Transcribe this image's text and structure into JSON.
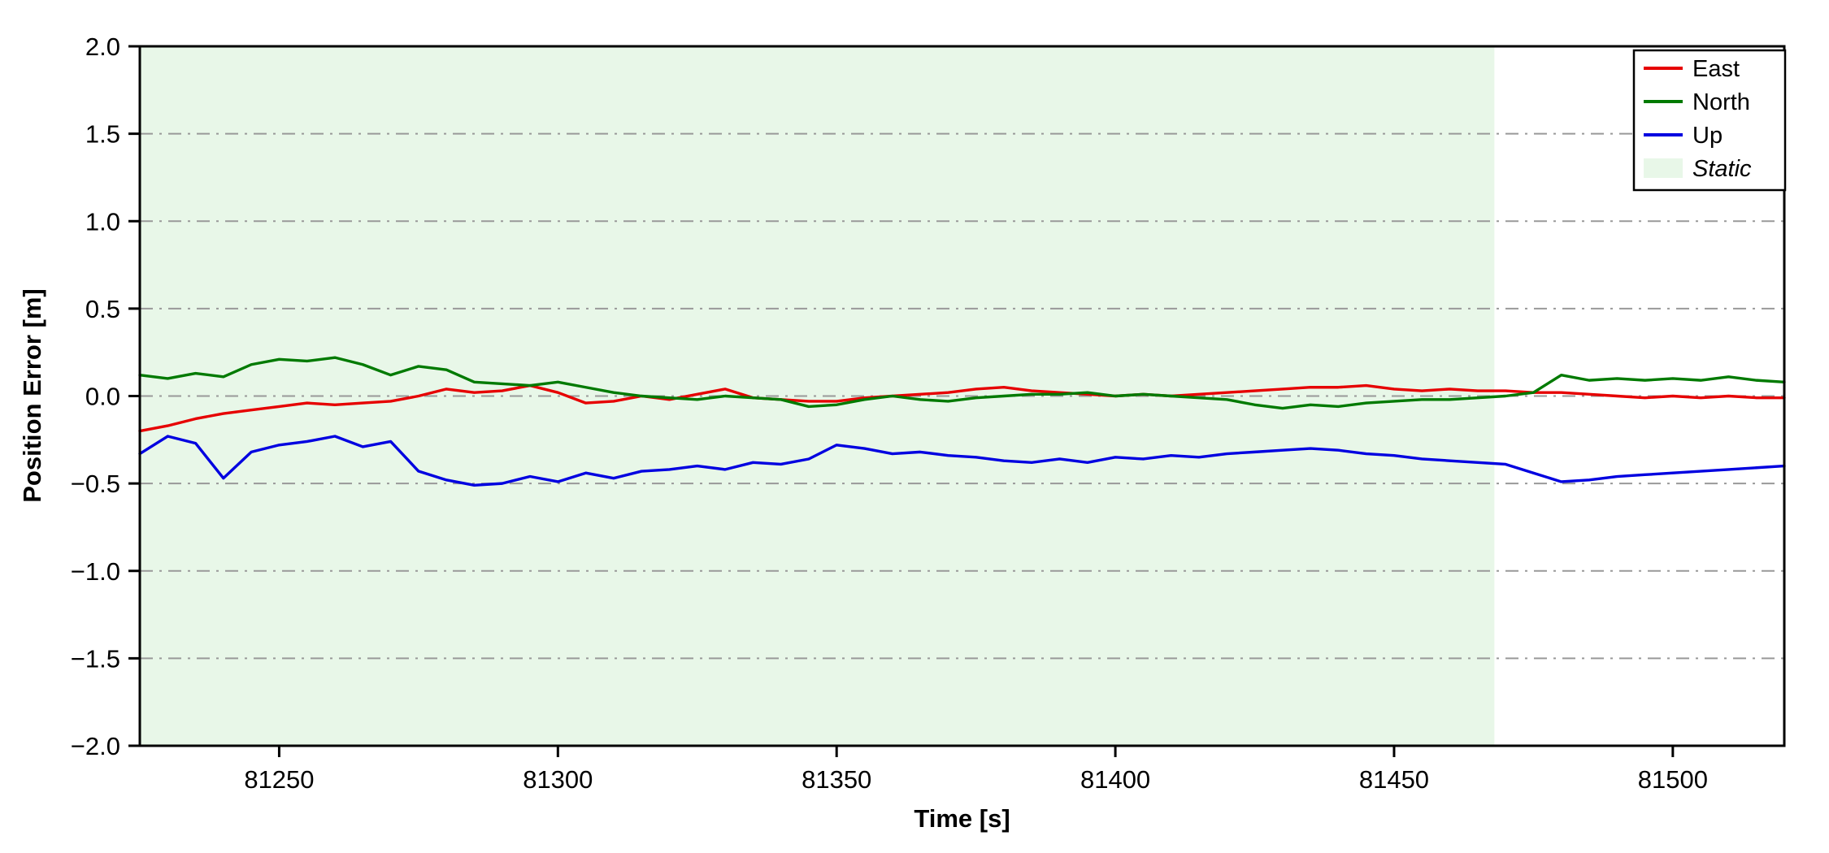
{
  "chart_data": {
    "type": "line",
    "title": "",
    "xlabel": "Time [s]",
    "ylabel": "Position Error [m]",
    "xlim": [
      81225,
      81520
    ],
    "ylim": [
      -2.0,
      2.0
    ],
    "xticks": [
      81250,
      81300,
      81350,
      81400,
      81450,
      81500
    ],
    "yticks": [
      -2.0,
      -1.5,
      -1.0,
      -0.5,
      0.0,
      0.5,
      1.0,
      1.5,
      2.0
    ],
    "grid": {
      "axis": "y",
      "style": "dash-dot",
      "color": "#999999"
    },
    "static_region": {
      "label": "Static",
      "x_start": 81225,
      "x_end": 81468,
      "color": "#e8f7e8"
    },
    "legend": {
      "position": "top-right",
      "entries": [
        {
          "label": "East",
          "type": "line",
          "color": "#e60000"
        },
        {
          "label": "North",
          "type": "line",
          "color": "#007a00"
        },
        {
          "label": "Up",
          "type": "line",
          "color": "#0000e0"
        },
        {
          "label": "Static",
          "type": "patch",
          "color": "#e8f7e8",
          "italic": true
        }
      ]
    },
    "x": [
      81225,
      81230,
      81235,
      81240,
      81245,
      81250,
      81255,
      81260,
      81265,
      81270,
      81275,
      81280,
      81285,
      81290,
      81295,
      81300,
      81305,
      81310,
      81315,
      81320,
      81325,
      81330,
      81335,
      81340,
      81345,
      81350,
      81355,
      81360,
      81365,
      81370,
      81375,
      81380,
      81385,
      81390,
      81395,
      81400,
      81405,
      81410,
      81415,
      81420,
      81425,
      81430,
      81435,
      81440,
      81445,
      81450,
      81455,
      81460,
      81465,
      81470,
      81475,
      81480,
      81485,
      81490,
      81495,
      81500,
      81505,
      81510,
      81515,
      81520
    ],
    "series": [
      {
        "name": "East",
        "color": "#e60000",
        "values": [
          -0.2,
          -0.17,
          -0.13,
          -0.1,
          -0.08,
          -0.06,
          -0.04,
          -0.05,
          -0.04,
          -0.03,
          0.0,
          0.04,
          0.02,
          0.03,
          0.06,
          0.02,
          -0.04,
          -0.03,
          0.0,
          -0.02,
          0.01,
          0.04,
          -0.01,
          -0.02,
          -0.03,
          -0.03,
          -0.01,
          0.0,
          0.01,
          0.02,
          0.04,
          0.05,
          0.03,
          0.02,
          0.01,
          0.0,
          0.01,
          0.0,
          0.01,
          0.02,
          0.03,
          0.04,
          0.05,
          0.05,
          0.06,
          0.04,
          0.03,
          0.04,
          0.03,
          0.03,
          0.02,
          0.02,
          0.01,
          0.0,
          -0.01,
          0.0,
          -0.01,
          0.0,
          -0.01,
          -0.01
        ]
      },
      {
        "name": "North",
        "color": "#007a00",
        "values": [
          0.12,
          0.1,
          0.13,
          0.11,
          0.18,
          0.21,
          0.2,
          0.22,
          0.18,
          0.12,
          0.17,
          0.15,
          0.08,
          0.07,
          0.06,
          0.08,
          0.05,
          0.02,
          0.0,
          -0.01,
          -0.02,
          0.0,
          -0.01,
          -0.02,
          -0.06,
          -0.05,
          -0.02,
          0.0,
          -0.02,
          -0.03,
          -0.01,
          0.0,
          0.01,
          0.01,
          0.02,
          0.0,
          0.01,
          0.0,
          -0.01,
          -0.02,
          -0.05,
          -0.07,
          -0.05,
          -0.06,
          -0.04,
          -0.03,
          -0.02,
          -0.02,
          -0.01,
          0.0,
          0.02,
          0.12,
          0.09,
          0.1,
          0.09,
          0.1,
          0.09,
          0.11,
          0.09,
          0.08
        ]
      },
      {
        "name": "Up",
        "color": "#0000e0",
        "values": [
          -0.33,
          -0.23,
          -0.27,
          -0.47,
          -0.32,
          -0.28,
          -0.26,
          -0.23,
          -0.29,
          -0.26,
          -0.43,
          -0.48,
          -0.51,
          -0.5,
          -0.46,
          -0.49,
          -0.44,
          -0.47,
          -0.43,
          -0.42,
          -0.4,
          -0.42,
          -0.38,
          -0.39,
          -0.36,
          -0.28,
          -0.3,
          -0.33,
          -0.32,
          -0.34,
          -0.35,
          -0.37,
          -0.38,
          -0.36,
          -0.38,
          -0.35,
          -0.36,
          -0.34,
          -0.35,
          -0.33,
          -0.32,
          -0.31,
          -0.3,
          -0.31,
          -0.33,
          -0.34,
          -0.36,
          -0.37,
          -0.38,
          -0.39,
          -0.44,
          -0.49,
          -0.48,
          -0.46,
          -0.45,
          -0.44,
          -0.43,
          -0.42,
          -0.41,
          -0.4
        ]
      }
    ]
  }
}
